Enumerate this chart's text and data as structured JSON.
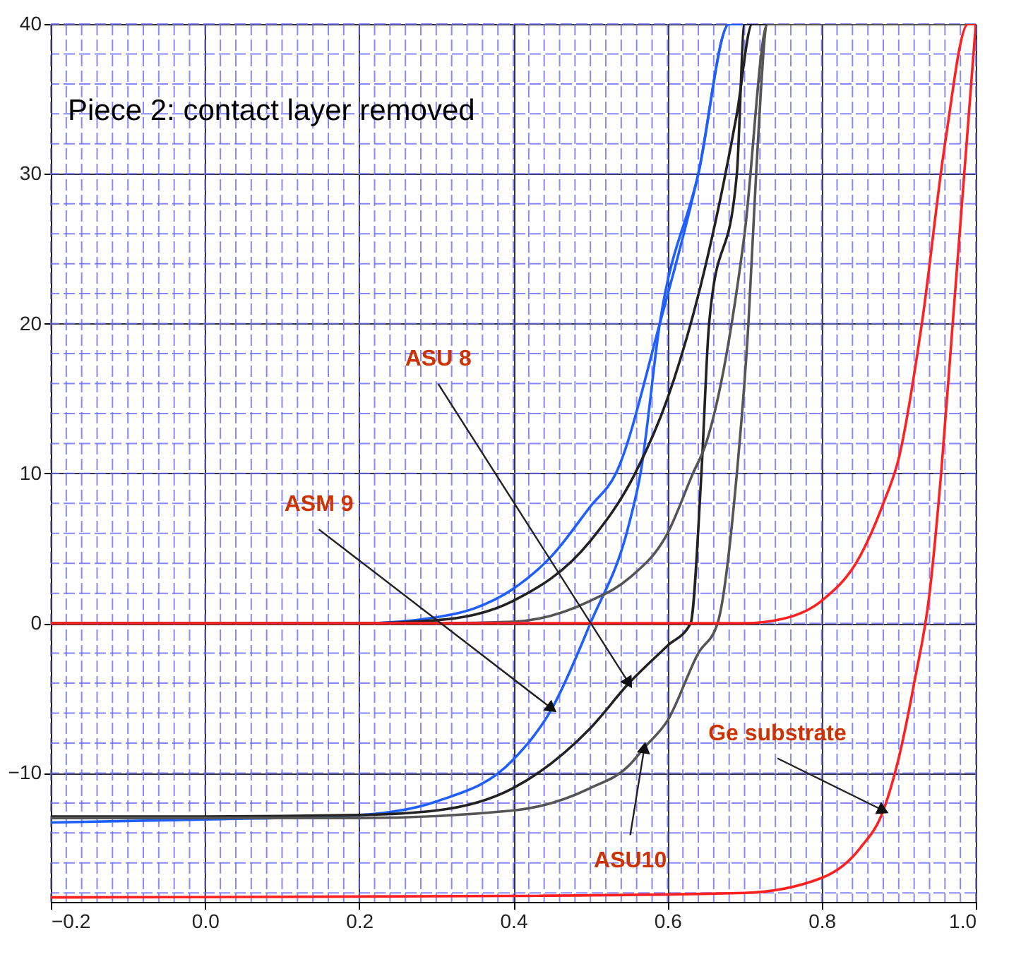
{
  "chart_data": {
    "type": "line",
    "title": "Piece 2: contact layer removed",
    "xlim": [
      -0.2,
      1.0
    ],
    "ylim": [
      -18.6,
      40
    ],
    "xticks": [
      -0.2,
      {
        "value": 0,
        "label": "0.0"
      },
      0.2,
      0.4,
      0.6,
      0.8,
      {
        "value": 1,
        "label": "1.0"
      }
    ],
    "yticks": [
      -10,
      0,
      10,
      20,
      30,
      40
    ],
    "grid": true,
    "line_style": "solid",
    "marker": "none",
    "series": [
      {
        "color": "#1f5fff",
        "x": [
          -0.2,
          0.0,
          0.2,
          0.3,
          0.4,
          0.45,
          0.5,
          0.55,
          0.565,
          0.59,
          0.64,
          0.68,
          1.0
        ],
        "values": [
          -13.3,
          -13.1,
          -12.8,
          -11.9,
          -9.1,
          -5.7,
          0,
          6.6,
          10,
          20,
          30,
          40,
          40
        ]
      },
      {
        "color": "#1f5fff",
        "x": [
          -0.2,
          0.2,
          0.3,
          0.35,
          0.4,
          0.45,
          0.5,
          0.533,
          0.59,
          0.64,
          0.68,
          1.0
        ],
        "values": [
          0,
          0,
          0.4,
          1,
          2.3,
          4.5,
          7.8,
          10,
          20,
          30,
          40,
          40
        ]
      },
      {
        "color": "#222222",
        "x": [
          -0.2,
          0.0,
          0.2,
          0.3,
          0.4,
          0.5,
          0.55,
          0.6,
          0.63,
          0.644,
          0.654,
          0.69,
          0.7,
          1.0
        ],
        "values": [
          -12.9,
          -12.9,
          -12.8,
          -12.5,
          -11,
          -7,
          -4,
          -1.5,
          0,
          10,
          20,
          30,
          40,
          40
        ]
      },
      {
        "color": "#222222",
        "x": [
          -0.2,
          0.2,
          0.3,
          0.4,
          0.5,
          0.558,
          0.6,
          0.65,
          0.69,
          0.71,
          1.0
        ],
        "values": [
          0,
          0,
          0.2,
          1.5,
          5.5,
          10,
          15,
          24,
          34,
          40,
          40
        ]
      },
      {
        "color": "#555555",
        "x": [
          -0.2,
          0.2,
          0.4,
          0.5,
          0.55,
          0.57,
          0.6,
          0.64,
          0.665,
          0.69,
          0.705,
          0.715,
          0.73,
          1.0
        ],
        "values": [
          -13,
          -13,
          -12.5,
          -11,
          -9.5,
          -8.3,
          -6.5,
          -2,
          0,
          10,
          20,
          30,
          40,
          40
        ]
      },
      {
        "color": "#555555",
        "x": [
          -0.2,
          0.3,
          0.4,
          0.5,
          0.55,
          0.6,
          0.633,
          0.65,
          0.7,
          0.73,
          1.0
        ],
        "values": [
          0,
          0,
          0.1,
          1.5,
          3,
          6,
          10,
          12,
          26,
          40,
          40
        ]
      },
      {
        "color": "#ff2020",
        "x": [
          -0.2,
          0.4,
          0.7,
          0.8,
          0.85,
          0.88,
          0.9,
          0.92,
          0.94,
          0.955,
          0.97,
          0.985,
          1.0
        ],
        "values": [
          -18.3,
          -18.2,
          -18,
          -17,
          -15,
          -12.5,
          -9,
          -4,
          2,
          10,
          20,
          30,
          40
        ]
      },
      {
        "color": "#ff2020",
        "x": [
          -0.2,
          0.7,
          0.75,
          0.8,
          0.85,
          0.88,
          0.9,
          0.93,
          0.96,
          0.99,
          1.0
        ],
        "values": [
          0,
          0,
          0.3,
          1.5,
          4.5,
          8,
          11,
          20,
          32,
          40,
          40
        ]
      }
    ],
    "annotations": [
      {
        "text": "ASU 8",
        "x": 0.55,
        "y": -4
      },
      {
        "text": "ASM 9",
        "x": 0.45,
        "y": -5.7
      },
      {
        "text": "Ge substrate",
        "x": 0.88,
        "y": -12.5
      },
      {
        "text": "ASU10",
        "x": 0.57,
        "y": -8.3
      }
    ]
  }
}
